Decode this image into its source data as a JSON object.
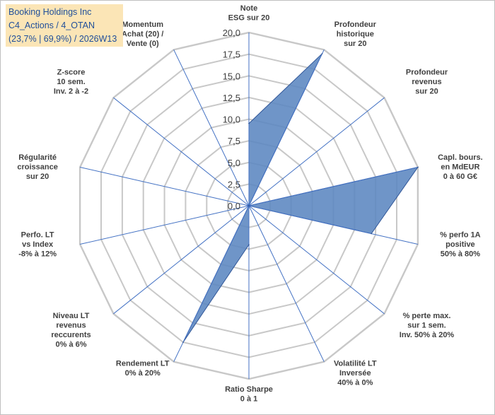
{
  "title_box": {
    "line1": "Booking Holdings Inc",
    "line2": "C4_Actions / 4_OTAN",
    "line3": "(23,7% | 69,9%) / 2026W13"
  },
  "colors": {
    "fill": "#5b86c0",
    "stroke": "#2f5597",
    "grid": "#c8c8c8",
    "spoke": "#4472c4",
    "title_bg": "#fbe5b6",
    "title_text": "#1f4e9a"
  },
  "chart_data": {
    "type": "radar",
    "title": "",
    "rmin": 0,
    "rmax": 20,
    "tick_step": 2.5,
    "tick_labels": [
      "0,0",
      "2,5",
      "5,0",
      "7,5",
      "10,0",
      "12,5",
      "15,0",
      "17,5",
      "20,0"
    ],
    "axes": [
      [
        "Note",
        "ESG sur 20"
      ],
      [
        "Profondeur",
        "historique",
        "sur 20"
      ],
      [
        "Profondeur",
        "revenus",
        "sur 20"
      ],
      [
        "Capl. bours.",
        "en MdEUR",
        "0 à 60 G€"
      ],
      [
        "% perfo 1A",
        "positive",
        "50% à 80%"
      ],
      [
        "% perte max.",
        "sur 1 sem.",
        "Inv. 50% à 20%"
      ],
      [
        "Volatilité LT",
        "Inversée",
        "40% à 0%"
      ],
      [
        "Ratio Sharpe",
        "0 à 1"
      ],
      [
        "Rendement LT",
        "0% à 20%"
      ],
      [
        "Niveau LT",
        "revenus",
        "reccurents",
        "0% à 6%"
      ],
      [
        "Perfo. LT",
        "vs Index",
        "-8% à 12%"
      ],
      [
        "Régularité",
        "croissance",
        "sur 20"
      ],
      [
        "Z-score",
        "10 sem.",
        "Inv. 2 à -2"
      ],
      [
        "Momentum",
        "Achat (20) /",
        "Vente (0)"
      ]
    ],
    "series": [
      {
        "name": "Booking Holdings Inc",
        "values": [
          9.5,
          19.5,
          0,
          20,
          14.5,
          0,
          0,
          4.5,
          17.5,
          0,
          0,
          0,
          0,
          0
        ]
      }
    ]
  }
}
